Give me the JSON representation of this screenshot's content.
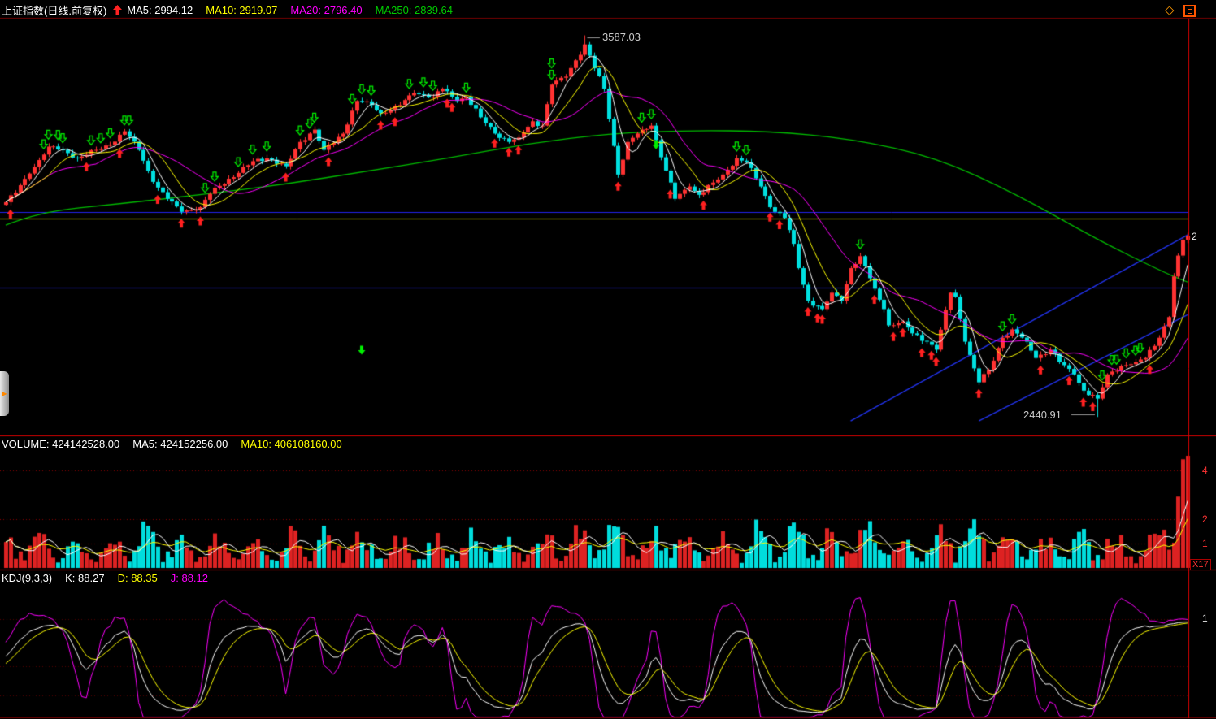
{
  "window": {
    "diamond_glyph": "◇",
    "handle_glyph": "▶"
  },
  "price_panel": {
    "title": "上证指数(日线.前复权)",
    "ma_labels": [
      {
        "text": "MA5: 2994.12",
        "color": "#ffffff"
      },
      {
        "text": "MA10: 2919.07",
        "color": "#ffff00"
      },
      {
        "text": "MA20: 2796.40",
        "color": "#ff00ff"
      },
      {
        "text": "MA250: 2839.64",
        "color": "#00cc00"
      }
    ],
    "peak_annotation": "3587.03",
    "trough_annotation": "2440.91",
    "right_axis_label": "2"
  },
  "volume_panel": {
    "labels": [
      {
        "text": "VOLUME: 424142528.00",
        "color": "#ffffff"
      },
      {
        "text": "MA5: 424152256.00",
        "color": "#ffffff"
      },
      {
        "text": "MA10: 406108160.00",
        "color": "#ffff00"
      }
    ],
    "right_axis_labels": [
      "4",
      "2",
      "1"
    ],
    "scale_label": "X17"
  },
  "kdj_panel": {
    "labels": [
      {
        "text": "KDJ(9,3,3)",
        "color": "#ffffff"
      },
      {
        "text": "K: 88.27",
        "color": "#ffffff"
      },
      {
        "text": "D: 88.35",
        "color": "#ffff00"
      },
      {
        "text": "J: 88.12",
        "color": "#ff00ff"
      }
    ],
    "right_axis_label": "1"
  },
  "chart_data": {
    "type": "candlestick",
    "instrument": "上证指数",
    "period": "日线.前复权",
    "bars": 250,
    "ylim": [
      2400,
      3625
    ],
    "peak": {
      "index": 122,
      "high": 3587.03
    },
    "trough": {
      "index": 230,
      "low": 2440.91
    },
    "ma": {
      "ma5": 2994.12,
      "ma10": 2919.07,
      "ma20": 2796.4,
      "ma250": 2839.64
    },
    "volume": {
      "current": 424142528,
      "ma5": 424152256,
      "ma10": 406108160
    },
    "kdj": {
      "params": "9,3,3",
      "k": 88.27,
      "d": 88.35,
      "j": 88.12
    },
    "close_anchors": [
      [
        0,
        3086
      ],
      [
        2,
        3115
      ],
      [
        5,
        3172
      ],
      [
        9,
        3253
      ],
      [
        12,
        3243
      ],
      [
        15,
        3218
      ],
      [
        19,
        3243
      ],
      [
        22,
        3258
      ],
      [
        25,
        3299
      ],
      [
        28,
        3243
      ],
      [
        31,
        3147
      ],
      [
        34,
        3096
      ],
      [
        37,
        3057
      ],
      [
        41,
        3071
      ],
      [
        43,
        3111
      ],
      [
        45,
        3135
      ],
      [
        49,
        3174
      ],
      [
        52,
        3209
      ],
      [
        55,
        3218
      ],
      [
        59,
        3194
      ],
      [
        62,
        3267
      ],
      [
        65,
        3304
      ],
      [
        67,
        3243
      ],
      [
        71,
        3292
      ],
      [
        74,
        3390
      ],
      [
        77,
        3378
      ],
      [
        79,
        3353
      ],
      [
        83,
        3378
      ],
      [
        86,
        3414
      ],
      [
        90,
        3402
      ],
      [
        92,
        3427
      ],
      [
        95,
        3390
      ],
      [
        97,
        3402
      ],
      [
        100,
        3341
      ],
      [
        103,
        3292
      ],
      [
        106,
        3267
      ],
      [
        108,
        3280
      ],
      [
        111,
        3329
      ],
      [
        113,
        3316
      ],
      [
        115,
        3439
      ],
      [
        118,
        3463
      ],
      [
        120,
        3512
      ],
      [
        122,
        3560
      ],
      [
        124,
        3488
      ],
      [
        126,
        3427
      ],
      [
        128,
        3255
      ],
      [
        129,
        3169
      ],
      [
        131,
        3267
      ],
      [
        134,
        3304
      ],
      [
        136,
        3316
      ],
      [
        139,
        3181
      ],
      [
        141,
        3096
      ],
      [
        144,
        3133
      ],
      [
        146,
        3108
      ],
      [
        149,
        3145
      ],
      [
        151,
        3169
      ],
      [
        154,
        3218
      ],
      [
        156,
        3206
      ],
      [
        159,
        3133
      ],
      [
        161,
        3071
      ],
      [
        164,
        3039
      ],
      [
        166,
        2961
      ],
      [
        167,
        2888
      ],
      [
        169,
        2790
      ],
      [
        172,
        2765
      ],
      [
        174,
        2814
      ],
      [
        176,
        2790
      ],
      [
        178,
        2888
      ],
      [
        180,
        2924
      ],
      [
        183,
        2826
      ],
      [
        185,
        2765
      ],
      [
        186,
        2716
      ],
      [
        189,
        2728
      ],
      [
        191,
        2692
      ],
      [
        194,
        2667
      ],
      [
        196,
        2643
      ],
      [
        199,
        2814
      ],
      [
        200,
        2802
      ],
      [
        202,
        2667
      ],
      [
        205,
        2545
      ],
      [
        207,
        2581
      ],
      [
        210,
        2679
      ],
      [
        212,
        2704
      ],
      [
        215,
        2667
      ],
      [
        217,
        2618
      ],
      [
        220,
        2643
      ],
      [
        222,
        2606
      ],
      [
        225,
        2569
      ],
      [
        227,
        2520
      ],
      [
        230,
        2496
      ],
      [
        232,
        2569
      ],
      [
        235,
        2594
      ],
      [
        238,
        2606
      ],
      [
        240,
        2618
      ],
      [
        243,
        2679
      ],
      [
        245,
        2741
      ],
      [
        246,
        2863
      ],
      [
        248,
        2973
      ],
      [
        249,
        2985
      ]
    ],
    "ma250_anchors": [
      [
        0,
        3017
      ],
      [
        7,
        3057
      ],
      [
        24,
        3081
      ],
      [
        42,
        3110
      ],
      [
        59,
        3140
      ],
      [
        76,
        3179
      ],
      [
        93,
        3218
      ],
      [
        110,
        3262
      ],
      [
        127,
        3292
      ],
      [
        144,
        3302
      ],
      [
        161,
        3299
      ],
      [
        178,
        3277
      ],
      [
        196,
        3221
      ],
      [
        213,
        3110
      ],
      [
        230,
        2973
      ],
      [
        244,
        2875
      ],
      [
        249,
        2846
      ]
    ],
    "hlines": [
      {
        "price": 3057,
        "color": "#2222ee"
      },
      {
        "price": 3037,
        "color": "#ffff00"
      },
      {
        "price": 2829,
        "color": "#2222ee"
      }
    ],
    "trendlines": [
      {
        "i1": 178,
        "p1": 2429,
        "i2": 249,
        "p2": 2988,
        "color": "#2233ee"
      },
      {
        "i1": 205,
        "p1": 2429,
        "i2": 249,
        "p2": 2748,
        "color": "#2233ee"
      }
    ],
    "signals": {
      "buy": [
        1,
        17,
        24,
        32,
        37,
        41,
        59,
        68,
        79,
        82,
        93,
        94,
        103,
        106,
        108,
        129,
        140,
        147,
        161,
        163,
        169,
        171,
        172,
        183,
        187,
        189,
        193,
        195,
        196,
        205,
        218,
        224,
        227,
        229,
        241
      ],
      "sell": [
        8,
        9,
        11,
        12,
        18,
        20,
        22,
        25,
        26,
        42,
        44,
        49,
        52,
        55,
        62,
        64,
        65,
        73,
        75,
        77,
        85,
        88,
        90,
        97,
        115,
        115,
        134,
        136,
        154,
        156,
        180,
        210,
        212,
        231,
        233,
        234,
        236,
        238,
        239
      ],
      "sell_solid": [
        {
          "i": 75,
          "price": 2628
        },
        {
          "i": 137,
          "price": 3245
        }
      ]
    },
    "colors": {
      "background": "#000000",
      "frame_red": "#dd0000",
      "up": "#ff3232",
      "down": "#00e0e0",
      "ma5": "#ffffff",
      "ma10": "#ffff00",
      "ma20": "#ff00ff",
      "ma250": "#00bb00",
      "vol_up": "#dd2222",
      "vol_down": "#00dddd",
      "k": "#ffffff",
      "d": "#ffff00",
      "j": "#ff00ff",
      "signal_buy": "#ff2020",
      "signal_sell": "#00ee00",
      "grid": "#8b0000",
      "accent_orange": "#ff8800"
    }
  }
}
